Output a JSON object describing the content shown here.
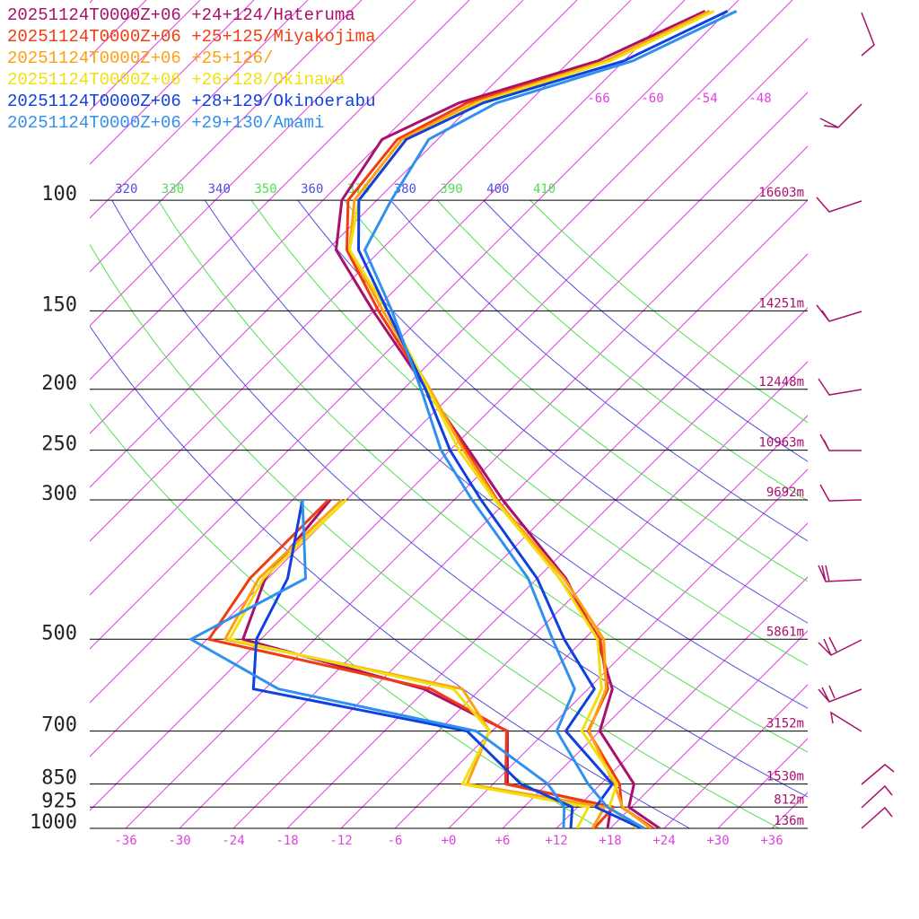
{
  "chart_data": {
    "type": "skew-t",
    "log_y": true,
    "ylim": [
      1000,
      48
    ],
    "yticks": [
      100,
      150,
      200,
      250,
      300,
      500,
      700,
      850,
      925,
      1000
    ],
    "isobar_heights": [
      "16603m",
      "14251m",
      "12448m",
      "10963m",
      "9692m",
      "5861m",
      "3152m",
      "1530m",
      "812m",
      "136m"
    ],
    "xticks": [
      -36,
      -30,
      -24,
      -18,
      -12,
      -6,
      {
        "value": 0,
        "label": "+0"
      },
      {
        "value": 6,
        "label": "+6"
      },
      {
        "value": 12,
        "label": "+12"
      },
      {
        "value": 18,
        "label": "+18"
      },
      {
        "value": 24,
        "label": "+24"
      },
      {
        "value": 30,
        "label": "+30"
      },
      {
        "value": 36,
        "label": "+36"
      }
    ],
    "top_isotherm_labels": [
      -66,
      -60,
      -54,
      -48
    ],
    "isotherm_color": "#e040e0",
    "isentropes": {
      "values": [
        320,
        330,
        340,
        350,
        360,
        370,
        380,
        390,
        400,
        410
      ],
      "colors": [
        "#5050e0",
        "#50e050",
        "#5050e0",
        "#50e050",
        "#5050e0",
        "#50e050",
        "#5050e0",
        "#50e050",
        "#5050e0",
        "#50e050"
      ]
    },
    "pressure": [
      1000,
      925,
      850,
      700,
      600,
      500,
      400,
      300,
      250,
      200,
      150,
      120,
      100,
      80,
      70,
      60,
      50
    ],
    "series": [
      {
        "name": "20251124T0000Z+06 +24+124/Hateruma",
        "color": "#a8106a",
        "temperature": [
          23.5,
          17.7,
          15.7,
          6,
          2.7,
          -4.5,
          -14.8,
          -30.6,
          -39.9,
          -51.4,
          -66.1,
          -77,
          -81.9,
          -84.2,
          -79.7,
          -68.9,
          -62.5
        ],
        "dewpoint": [
          17.7,
          15.7,
          1.6,
          -4.3,
          -18.3,
          -44,
          -48.3,
          -49.8,
          null,
          null,
          null,
          null,
          null,
          null,
          null,
          null,
          null
        ]
      },
      {
        "name": "20251124T0000Z+06 +25+125/Miyakojima",
        "color": "#f03c10",
        "temperature": [
          22.8,
          16.9,
          14.1,
          4.7,
          2.2,
          -4.2,
          -15.5,
          -31.2,
          -40.2,
          -51.2,
          -65.5,
          -75.8,
          -81.2,
          -82.5,
          -78.8,
          -68,
          -62
        ],
        "dewpoint": [
          16.2,
          16,
          1.4,
          -4.4,
          -17.5,
          -47.8,
          -50,
          -50,
          null,
          null,
          null,
          null,
          null,
          null,
          null,
          null,
          null
        ]
      },
      {
        "name": "20251124T0000Z+06 +25+126/",
        "color": "#ffa010",
        "temperature": [
          22.5,
          17,
          13.5,
          4.8,
          2,
          -3.8,
          -15,
          -31.3,
          -40.5,
          -51,
          -65,
          -75.5,
          -80.5,
          -82,
          -78,
          -68,
          -62
        ],
        "dewpoint": [
          16,
          15,
          -2.9,
          -6.3,
          -14,
          -46,
          -49,
          -48.5,
          null,
          null,
          null,
          null,
          null,
          null,
          null,
          null,
          null
        ]
      },
      {
        "name": "20251124T0000Z+06 +26+128/Okinawa",
        "color": "#f0e010",
        "temperature": [
          21,
          15.5,
          13.8,
          4,
          1.5,
          -4.5,
          -15.5,
          -31.5,
          -41,
          -51.2,
          -64.5,
          -75.5,
          -80,
          -81.5,
          -77.5,
          -67.5,
          -61.5
        ],
        "dewpoint": [
          14.3,
          13.2,
          -3.4,
          -6.3,
          -15,
          -45.5,
          -48.5,
          -48,
          null,
          null,
          null,
          null,
          null,
          null,
          null,
          null,
          null
        ]
      },
      {
        "name": "20251124T0000Z+06 +28+129/Okinoerabu",
        "color": "#1040e0",
        "temperature": [
          21.5,
          14,
          13.3,
          2.2,
          0.7,
          -8.2,
          -18,
          -33,
          -42,
          -51.5,
          -64.5,
          -74.5,
          -80,
          -81.5,
          -77,
          -66,
          -60
        ],
        "dewpoint": [
          13.6,
          11.4,
          3.1,
          -8.8,
          -37.3,
          -42.5,
          -45.8,
          -52.9,
          null,
          null,
          null,
          null,
          null,
          null,
          null,
          null,
          null
        ]
      },
      {
        "name": "20251124T0000Z+06 +29+130/Amami",
        "color": "#3090f0",
        "temperature": [
          21.8,
          15.3,
          10.6,
          1.2,
          -1.5,
          -9.5,
          -19,
          -34,
          -43,
          -52,
          -64,
          -73.8,
          -76.4,
          -79,
          -75.5,
          -65,
          -59
        ],
        "dewpoint": [
          12.8,
          10.5,
          6.1,
          -7.8,
          -34.5,
          -49.8,
          -43.8,
          -52.9,
          null,
          null,
          null,
          null,
          null,
          null,
          null,
          null,
          null
        ]
      }
    ]
  }
}
